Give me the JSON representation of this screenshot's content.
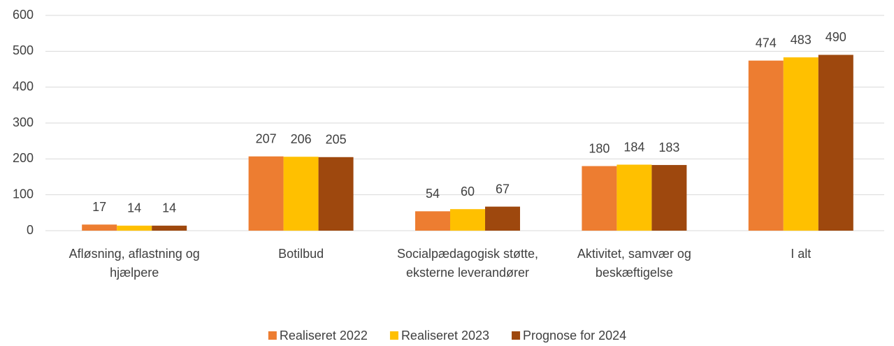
{
  "chart_data": {
    "type": "bar",
    "categories": [
      "Afløsning, aflastning og hjælpere",
      "Botilbud",
      "Socialpædagogisk støtte, eksterne leverandører",
      "Aktivitet, samvær og beskæftigelse",
      "I alt"
    ],
    "series": [
      {
        "name": "Realiseret 2022",
        "color": "#ED7D31",
        "values": [
          17,
          207,
          54,
          180,
          474
        ]
      },
      {
        "name": "Realiseret 2023",
        "color": "#FFC000",
        "values": [
          14,
          206,
          60,
          184,
          483
        ]
      },
      {
        "name": "Prognose for 2024",
        "color": "#9E480E",
        "values": [
          14,
          205,
          67,
          183,
          490
        ]
      }
    ],
    "ylim": [
      0,
      600
    ],
    "yticks": [
      0,
      100,
      200,
      300,
      400,
      500,
      600
    ],
    "grid": true,
    "legend": "bottom"
  }
}
